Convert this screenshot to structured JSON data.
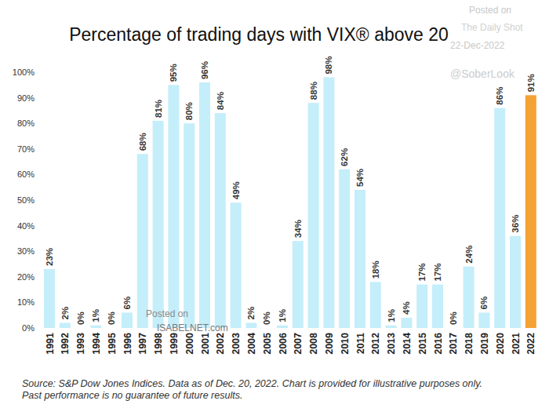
{
  "chart_data": {
    "type": "bar",
    "title": "Percentage of trading days with VIX® above 20",
    "source": "Source: S&P Dow Jones Indices. Data as of Dec. 20, 2022.  Chart is provided for illustrative purposes only. Past performance is no guarantee of future results.",
    "annotations": [
      "Posted on",
      "The Daily Shot",
      "22-Dec-2022",
      "@SoberLook",
      "Posted on",
      "ISABELNET.com"
    ],
    "categories": [
      "1991",
      "1992",
      "1993",
      "1994",
      "1995",
      "1996",
      "1997",
      "1998",
      "1999",
      "2000",
      "2001",
      "2002",
      "2003",
      "2004",
      "2005",
      "2006",
      "2007",
      "2008",
      "2009",
      "2010",
      "2011",
      "2012",
      "2013",
      "2014",
      "2015",
      "2016",
      "2017",
      "2018",
      "2019",
      "2020",
      "2021",
      "2022"
    ],
    "values": [
      23,
      2,
      0,
      1,
      0,
      6,
      68,
      81,
      95,
      80,
      96,
      84,
      49,
      2,
      0,
      1,
      34,
      88,
      98,
      62,
      54,
      18,
      1,
      4,
      17,
      17,
      0,
      24,
      6,
      86,
      36,
      91
    ],
    "value_labels": [
      "23%",
      "2%",
      "0%",
      "1%",
      "0%",
      "6%",
      "68%",
      "81%",
      "95%",
      "80%",
      "96%",
      "84%",
      "49%",
      "2%",
      "0%",
      "1%",
      "34%",
      "88%",
      "98%",
      "62%",
      "54%",
      "18%",
      "1%",
      "4%",
      "17%",
      "17%",
      "0%",
      "24%",
      "6%",
      "86%",
      "36%",
      "91%"
    ],
    "colors": [
      "#c4eefa",
      "#c4eefa",
      "#c4eefa",
      "#c4eefa",
      "#c4eefa",
      "#c4eefa",
      "#c4eefa",
      "#c4eefa",
      "#c4eefa",
      "#c4eefa",
      "#c4eefa",
      "#c4eefa",
      "#c4eefa",
      "#c4eefa",
      "#c4eefa",
      "#c4eefa",
      "#c4eefa",
      "#c4eefa",
      "#c4eefa",
      "#c4eefa",
      "#c4eefa",
      "#c4eefa",
      "#c4eefa",
      "#c4eefa",
      "#c4eefa",
      "#c4eefa",
      "#c4eefa",
      "#c4eefa",
      "#c4eefa",
      "#c4eefa",
      "#c4eefa",
      "#f5a235"
    ],
    "ylim": [
      0,
      100
    ],
    "yticks": [
      {
        "value": 0,
        "label": "0%"
      },
      {
        "value": 10,
        "label": "10%"
      },
      {
        "value": 20,
        "label": "20%"
      },
      {
        "value": 30,
        "label": "30%"
      },
      {
        "value": 40,
        "label": "40%"
      },
      {
        "value": 50,
        "label": "50%"
      },
      {
        "value": 60,
        "label": "60%"
      },
      {
        "value": 70,
        "label": "70%"
      },
      {
        "value": 80,
        "label": "80%"
      },
      {
        "value": 90,
        "label": "90%"
      },
      {
        "value": 100,
        "label": "100%"
      }
    ],
    "grid": false,
    "data_labels": true
  }
}
